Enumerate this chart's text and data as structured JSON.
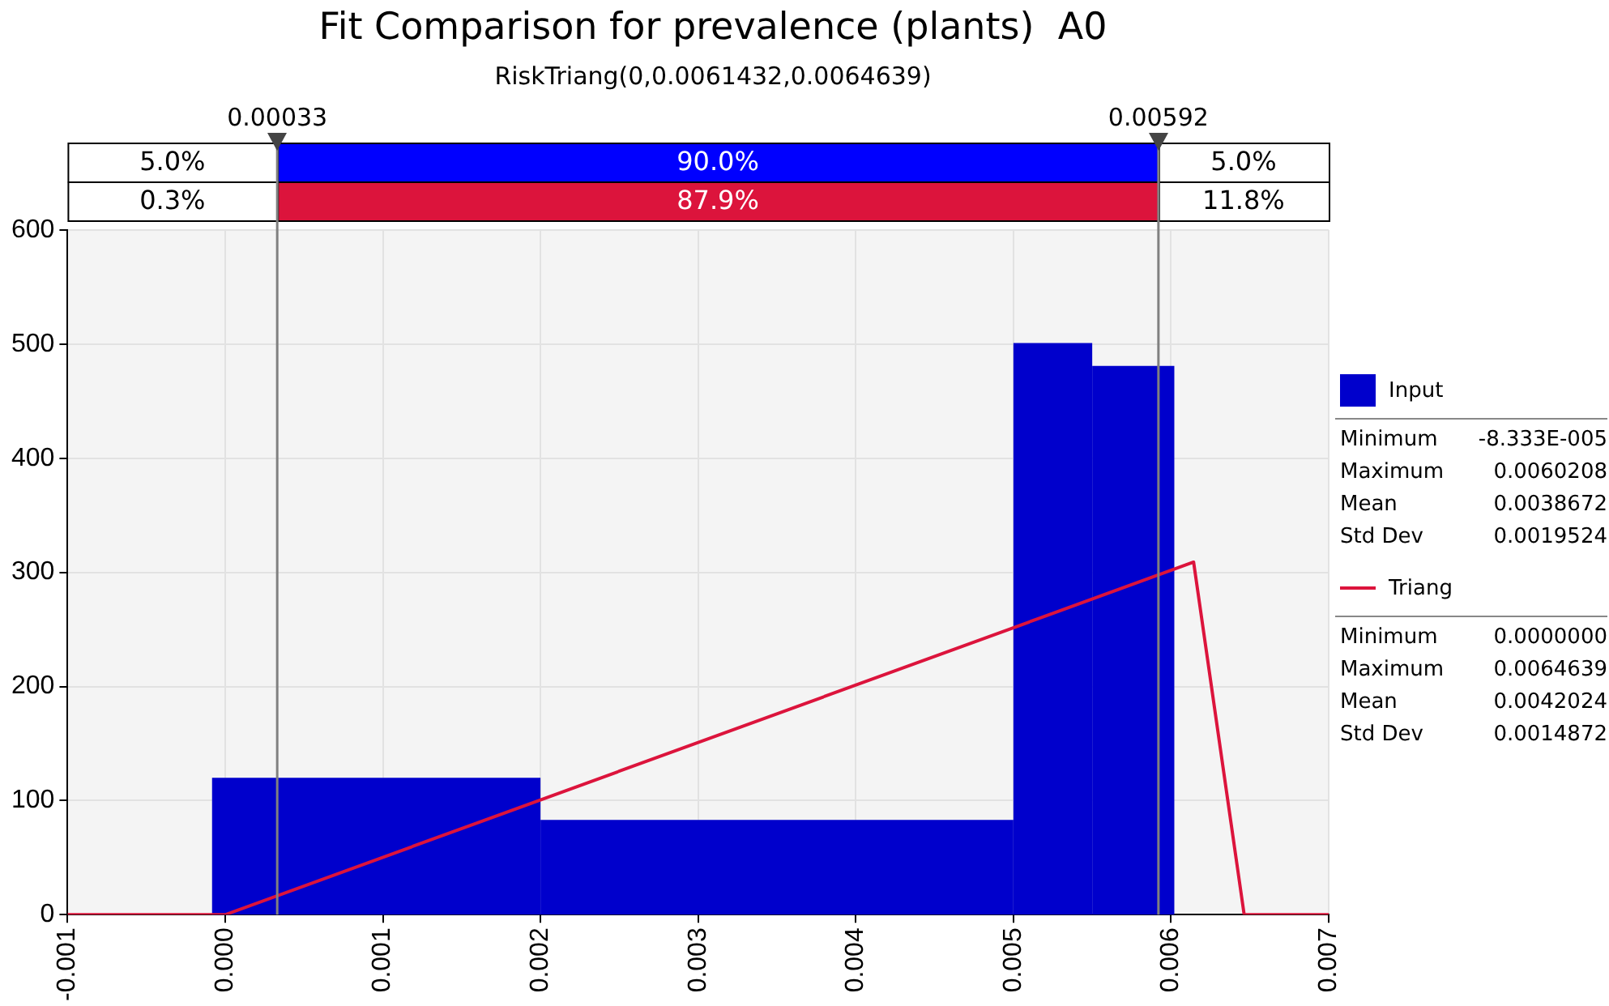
{
  "chart_data": {
    "type": "histogram",
    "title": "Fit Comparison for prevalence (plants)  A0",
    "subtitle": "RiskTriang(0,0.0061432,0.0064639)",
    "series": [
      {
        "name": "Input",
        "color": "#0000cc",
        "bins": [
          -8.33e-05,
          0.002,
          0.005,
          0.0055,
          0.0060208
        ],
        "values": [
          120,
          83,
          501,
          481
        ]
      },
      {
        "name": "Triang",
        "type": "line",
        "color": "#dc143c",
        "x": [
          -0.001,
          0,
          0.0061432,
          0.0064639,
          0.007
        ],
        "values": [
          0,
          0,
          309,
          0,
          0
        ]
      }
    ],
    "xlim": [
      -0.001,
      0.007
    ],
    "xticks": [
      -0.001,
      {
        "value": 0,
        "label": "0.000"
      },
      0.001,
      0.002,
      0.003,
      0.004,
      0.005,
      0.006,
      0.007
    ],
    "ylim": [
      0,
      600
    ],
    "yticks": [
      0,
      100,
      200,
      300,
      400,
      500,
      600
    ],
    "ref_lines": [
      {
        "axis": "x",
        "value": 0.00033,
        "label": "0.00033",
        "color": "#808080"
      },
      {
        "axis": "x",
        "value": 0.00592,
        "label": "0.00592",
        "color": "#808080"
      }
    ],
    "annotations": [
      "5.0%",
      "90.0%",
      "5.0%",
      "0.3%",
      "87.9%",
      "11.8%",
      "Minimum",
      "-8.333E-005",
      "Maximum",
      "0.0060208",
      "Mean",
      "0.0038672",
      "Std Dev",
      "0.0019524",
      "Minimum",
      "0.0000000",
      "Maximum",
      "0.0064639",
      "Mean",
      "0.0042024",
      "Std Dev",
      "0.0014872"
    ],
    "grid": true,
    "legend": "right",
    "marker": "none",
    "line_style": "solid"
  }
}
